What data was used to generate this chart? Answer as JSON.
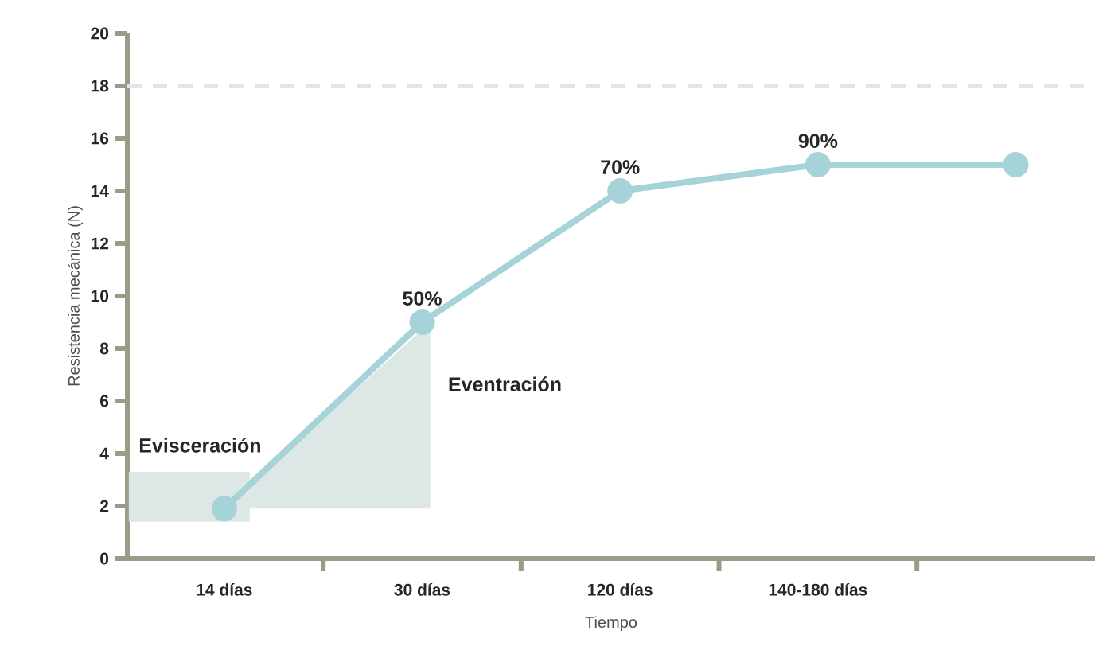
{
  "chart_data": {
    "type": "line",
    "xlabel": "Tiempo",
    "ylabel": "Resistencia mecánica (N)",
    "categories": [
      "14 días",
      "30 días",
      "120 días",
      "140-180 días",
      null
    ],
    "series": [
      {
        "type": "bar",
        "name": "Evisceración",
        "color": "#dde8e6",
        "base": [
          1.4,
          null,
          null,
          null,
          null
        ],
        "values": [
          1.9,
          null,
          null,
          null,
          null
        ]
      },
      {
        "color": "#a5d3d8",
        "marker": "circle",
        "values": [
          1.9,
          9,
          14,
          15,
          15
        ]
      }
    ],
    "annotations": [
      {
        "text": "50%",
        "x": "30 días",
        "y": 9
      },
      {
        "text": "70%",
        "x": "120 días",
        "y": 14
      },
      {
        "text": "90%",
        "x": "140-180 días",
        "y": 15
      },
      "Eventración"
    ],
    "ylim": [
      0,
      20
    ],
    "yticks": [
      0,
      2,
      4,
      6,
      8,
      10,
      12,
      14,
      16,
      18,
      20
    ],
    "ref_lines": [
      {
        "axis": "y",
        "value": 18,
        "color": "#dde8e6",
        "line_style": "dashed"
      }
    ],
    "line_style": "solid"
  }
}
